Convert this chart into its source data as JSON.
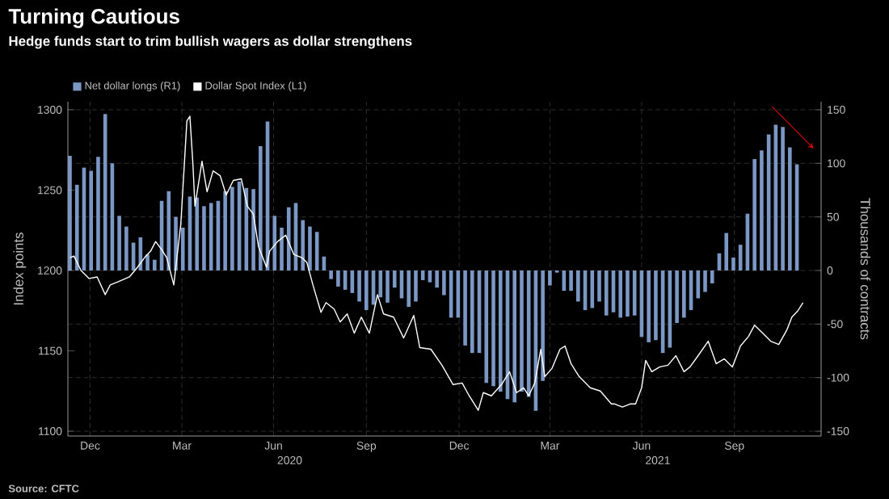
{
  "chart_data": {
    "type": "bar",
    "title": "Turning Cautious",
    "subtitle": "Hedge funds start to trim bullish wagers as dollar strengthens",
    "ylabel": "Index points",
    "y2label": "Thousands of contracts",
    "annotations": [
      "Source: CFTC"
    ],
    "xlim": [
      "2019-11-24",
      "2021-12-10"
    ],
    "xticks": [
      {
        "value": "2019-12-16",
        "label": "Dec"
      },
      {
        "value": "2020-03-16",
        "label": "Mar"
      },
      {
        "value": "2020-06-15",
        "label": "Jun"
      },
      {
        "value": "2020-09-15",
        "label": "Sep"
      },
      {
        "value": "2020-12-16",
        "label": "Dec"
      },
      {
        "value": "2021-03-16",
        "label": "Mar"
      },
      {
        "value": "2021-06-15",
        "label": "Jun"
      },
      {
        "value": "2021-09-15",
        "label": "Sep"
      }
    ],
    "x2lim": [
      "2019-11-24",
      "2021-12-10"
    ],
    "x2ticks": [
      {
        "value": "2020-07-01",
        "label": "2020"
      },
      {
        "value": "2021-07-01",
        "label": "2021"
      }
    ],
    "ylim": [
      1097,
      1305
    ],
    "yticks": [
      1100,
      1150,
      1200,
      1250,
      1300
    ],
    "y2lim": [
      -154.5,
      157.5
    ],
    "y2ticks": [
      -150,
      -100,
      -50,
      0,
      50,
      100,
      150
    ],
    "grid": true,
    "legend": "top left",
    "series": [
      {
        "name": "Net dollar longs (R1)",
        "axis": "y2",
        "color": "#7b97c4",
        "x": [
          "2019-11-26",
          "2019-12-03",
          "2019-12-10",
          "2019-12-17",
          "2019-12-24",
          "2019-12-31",
          "2020-01-07",
          "2020-01-14",
          "2020-01-21",
          "2020-01-28",
          "2020-02-04",
          "2020-02-11",
          "2020-02-18",
          "2020-02-25",
          "2020-03-03",
          "2020-03-10",
          "2020-03-17",
          "2020-03-24",
          "2020-03-31",
          "2020-04-07",
          "2020-04-14",
          "2020-04-21",
          "2020-04-28",
          "2020-05-05",
          "2020-05-12",
          "2020-05-19",
          "2020-05-26",
          "2020-06-02",
          "2020-06-09",
          "2020-06-16",
          "2020-06-23",
          "2020-06-30",
          "2020-07-07",
          "2020-07-14",
          "2020-07-21",
          "2020-07-28",
          "2020-08-04",
          "2020-08-11",
          "2020-08-18",
          "2020-08-25",
          "2020-09-01",
          "2020-09-08",
          "2020-09-15",
          "2020-09-22",
          "2020-09-29",
          "2020-10-06",
          "2020-10-13",
          "2020-10-20",
          "2020-10-27",
          "2020-11-03",
          "2020-11-10",
          "2020-11-17",
          "2020-11-24",
          "2020-12-01",
          "2020-12-08",
          "2020-12-15",
          "2020-12-22",
          "2020-12-29",
          "2021-01-05",
          "2021-01-12",
          "2021-01-19",
          "2021-01-26",
          "2021-02-02",
          "2021-02-09",
          "2021-02-16",
          "2021-02-23",
          "2021-03-02",
          "2021-03-09",
          "2021-03-16",
          "2021-03-23",
          "2021-03-30",
          "2021-04-06",
          "2021-04-13",
          "2021-04-20",
          "2021-04-27",
          "2021-05-04",
          "2021-05-11",
          "2021-05-18",
          "2021-05-25",
          "2021-06-01",
          "2021-06-08",
          "2021-06-15",
          "2021-06-22",
          "2021-06-29",
          "2021-07-06",
          "2021-07-13",
          "2021-07-20",
          "2021-07-27",
          "2021-08-03",
          "2021-08-10",
          "2021-08-17",
          "2021-08-24",
          "2021-08-31",
          "2021-09-07",
          "2021-09-14",
          "2021-09-21",
          "2021-09-28",
          "2021-10-05",
          "2021-10-12",
          "2021-10-19",
          "2021-10-26",
          "2021-11-02",
          "2021-11-09",
          "2021-11-16"
        ],
        "values": [
          107,
          80,
          96,
          93,
          106,
          146,
          100,
          51,
          41,
          26,
          31,
          15,
          10,
          65,
          74,
          50,
          40,
          69,
          68,
          60,
          63,
          65,
          74,
          78,
          83,
          77,
          76,
          116,
          139,
          51,
          40,
          59,
          63,
          47,
          41,
          36,
          13,
          -8,
          -15,
          -18,
          -21,
          -29,
          -37,
          -32,
          -25,
          -30,
          -16,
          -26,
          -34,
          -29,
          -9,
          -11,
          -16,
          -23,
          -44,
          -44,
          -70,
          -77,
          -77,
          -105,
          -108,
          -113,
          -120,
          -123,
          -113,
          -118,
          -131,
          -103,
          -14,
          -2,
          -19,
          -19,
          -29,
          -37,
          -35,
          -29,
          -42,
          -39,
          -44,
          -43,
          -42,
          -62,
          -67,
          -65,
          -77,
          -72,
          -49,
          -44,
          -37,
          -26,
          -20,
          -12,
          16,
          35,
          12,
          24,
          53,
          104,
          112,
          127,
          136,
          134,
          115,
          99
        ]
      },
      {
        "name": "Dollar Spot Index (L1)",
        "type": "line",
        "axis": "y",
        "color": "#ffffff",
        "x": [
          "2019-11-26",
          "2019-11-30",
          "2019-12-07",
          "2019-12-15",
          "2019-12-23",
          "2019-12-31",
          "2020-01-05",
          "2020-01-13",
          "2020-01-24",
          "2020-02-01",
          "2020-02-08",
          "2020-02-14",
          "2020-02-19",
          "2020-02-25",
          "2020-03-01",
          "2020-03-08",
          "2020-03-15",
          "2020-03-21",
          "2020-03-24",
          "2020-03-27",
          "2020-03-29",
          "2020-04-05",
          "2020-04-10",
          "2020-04-16",
          "2020-04-23",
          "2020-04-29",
          "2020-05-06",
          "2020-05-14",
          "2020-05-20",
          "2020-05-26",
          "2020-05-31",
          "2020-06-08",
          "2020-06-11",
          "2020-06-19",
          "2020-06-27",
          "2020-07-05",
          "2020-07-13",
          "2020-07-18",
          "2020-07-24",
          "2020-08-01",
          "2020-08-06",
          "2020-08-14",
          "2020-08-20",
          "2020-08-27",
          "2020-09-03",
          "2020-09-10",
          "2020-09-18",
          "2020-09-26",
          "2020-10-02",
          "2020-10-12",
          "2020-10-22",
          "2020-11-01",
          "2020-11-07",
          "2020-11-18",
          "2020-11-29",
          "2020-12-10",
          "2020-12-19",
          "2020-12-26",
          "2021-01-04",
          "2021-01-09",
          "2021-01-17",
          "2021-01-27",
          "2021-02-04",
          "2021-02-11",
          "2021-02-18",
          "2021-02-23",
          "2021-03-01",
          "2021-03-07",
          "2021-03-11",
          "2021-03-18",
          "2021-03-26",
          "2021-03-31",
          "2021-04-06",
          "2021-04-14",
          "2021-04-25",
          "2021-05-05",
          "2021-05-16",
          "2021-05-19",
          "2021-05-27",
          "2021-06-04",
          "2021-06-09",
          "2021-06-15",
          "2021-06-19",
          "2021-06-25",
          "2021-07-03",
          "2021-07-11",
          "2021-07-19",
          "2021-07-27",
          "2021-08-02",
          "2021-08-10",
          "2021-08-20",
          "2021-08-28",
          "2021-09-05",
          "2021-09-13",
          "2021-09-21",
          "2021-09-29",
          "2021-10-05",
          "2021-10-13",
          "2021-10-21",
          "2021-10-29",
          "2021-11-06",
          "2021-11-11",
          "2021-11-17",
          "2021-11-22"
        ],
        "values": [
          1208,
          1209,
          1200,
          1195,
          1196,
          1185,
          1191,
          1193,
          1196,
          1202,
          1208,
          1212,
          1218,
          1213,
          1208,
          1191,
          1229,
          1293,
          1296,
          1266,
          1240,
          1268,
          1249,
          1262,
          1259,
          1247,
          1256,
          1257,
          1240,
          1235,
          1215,
          1202,
          1212,
          1218,
          1222,
          1210,
          1208,
          1205,
          1191,
          1174,
          1180,
          1176,
          1168,
          1173,
          1161,
          1171,
          1161,
          1185,
          1173,
          1171,
          1158,
          1172,
          1152,
          1151,
          1141,
          1129,
          1130,
          1122,
          1113,
          1124,
          1122,
          1129,
          1137,
          1124,
          1127,
          1122,
          1130,
          1151,
          1134,
          1139,
          1151,
          1153,
          1142,
          1134,
          1127,
          1125,
          1117,
          1117,
          1115,
          1117,
          1117,
          1127,
          1144,
          1137,
          1140,
          1141,
          1147,
          1137,
          1140,
          1147,
          1156,
          1142,
          1145,
          1140,
          1153,
          1159,
          1166,
          1161,
          1156,
          1154,
          1163,
          1171,
          1175,
          1180
        ]
      }
    ]
  }
}
